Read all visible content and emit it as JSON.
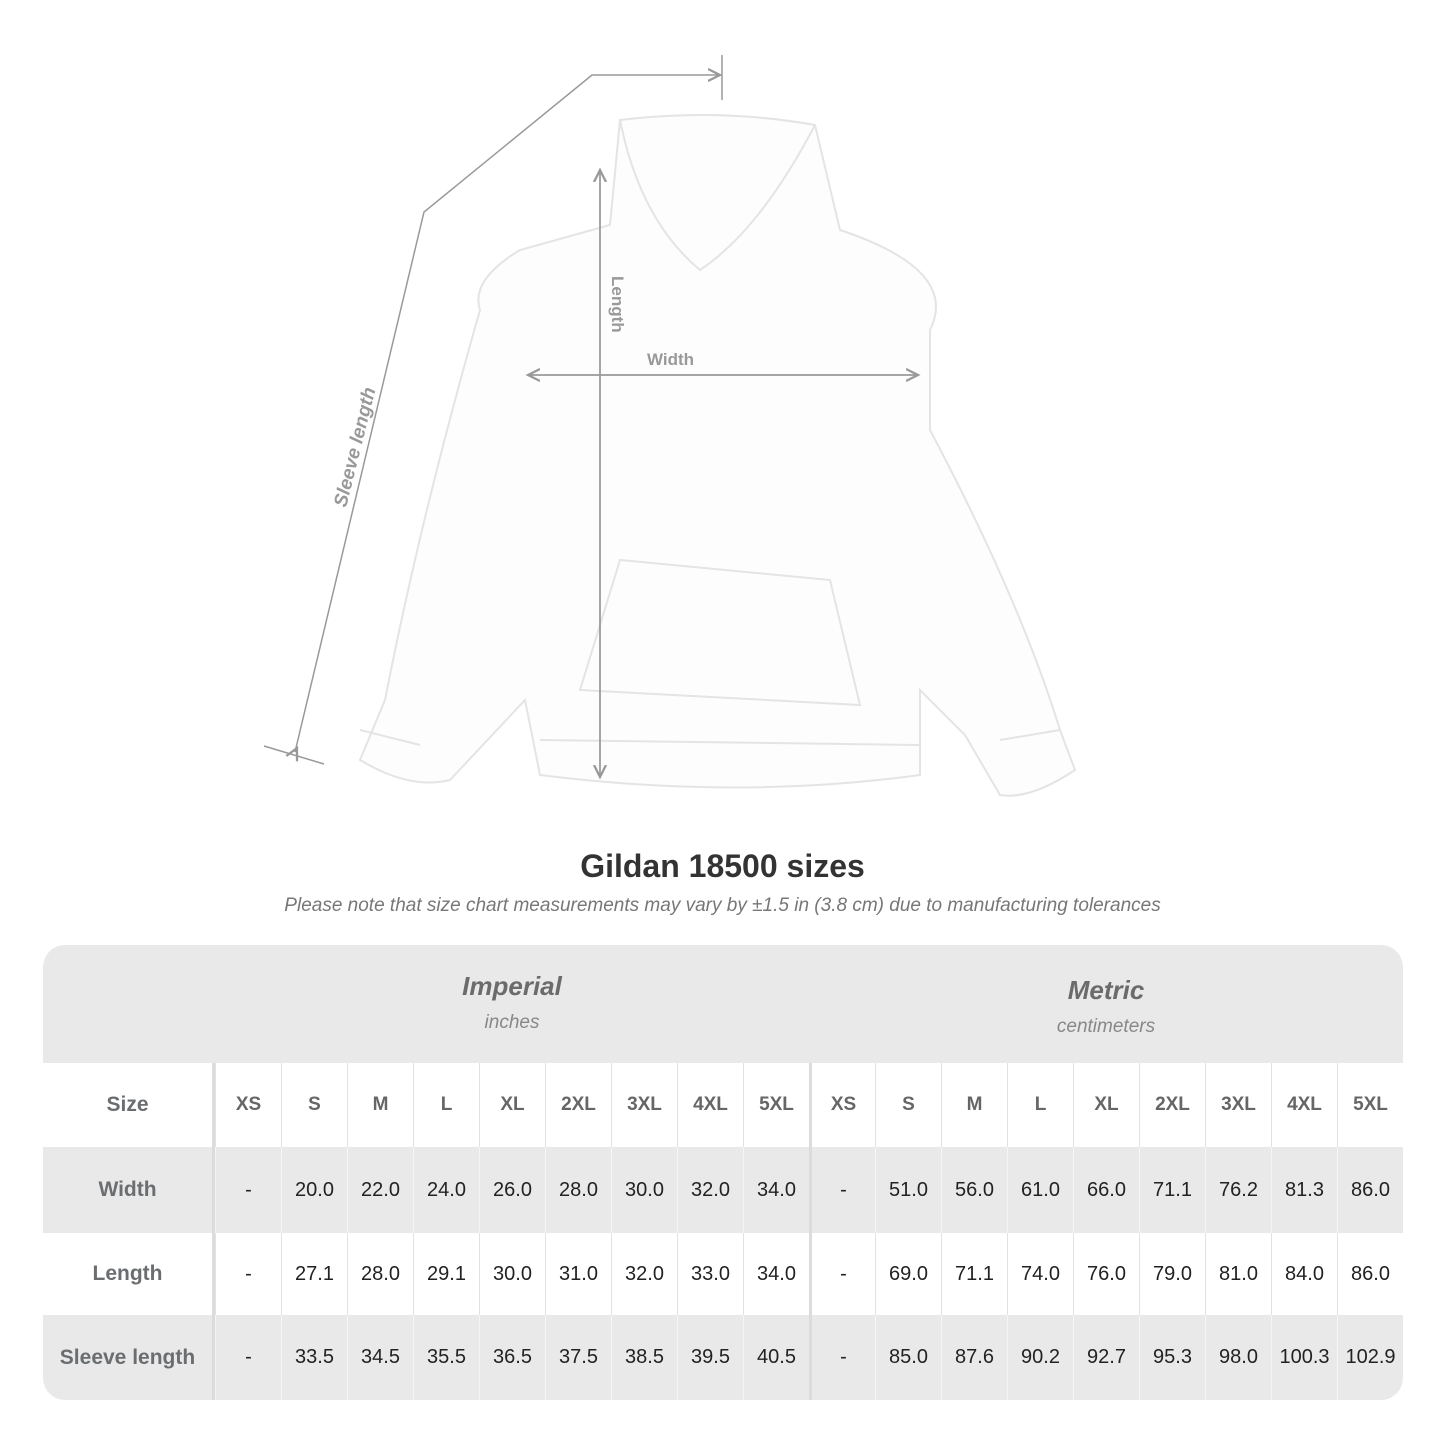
{
  "diagram": {
    "labels": {
      "sleeve": "Sleeve length",
      "length": "Length",
      "width": "Width"
    }
  },
  "title": "Gildan 18500 sizes",
  "note": "Please note that size chart measurements may vary by ±1.5 in (3.8 cm) due to manufacturing tolerances",
  "table": {
    "imperial": {
      "name": "Imperial",
      "unit": "inches"
    },
    "metric": {
      "name": "Metric",
      "unit": "centimeters"
    },
    "size_label": "Size",
    "sizes": [
      "XS",
      "S",
      "M",
      "L",
      "XL",
      "2XL",
      "3XL",
      "4XL",
      "5XL"
    ],
    "rows": [
      {
        "label": "Width",
        "imperial": [
          "-",
          "20.0",
          "22.0",
          "24.0",
          "26.0",
          "28.0",
          "30.0",
          "32.0",
          "34.0"
        ],
        "metric": [
          "-",
          "51.0",
          "56.0",
          "61.0",
          "66.0",
          "71.1",
          "76.2",
          "81.3",
          "86.0"
        ]
      },
      {
        "label": "Length",
        "imperial": [
          "-",
          "27.1",
          "28.0",
          "29.1",
          "30.0",
          "31.0",
          "32.0",
          "33.0",
          "34.0"
        ],
        "metric": [
          "-",
          "69.0",
          "71.1",
          "74.0",
          "76.0",
          "79.0",
          "81.0",
          "84.0",
          "86.0"
        ]
      },
      {
        "label": "Sleeve length",
        "imperial": [
          "-",
          "33.5",
          "34.5",
          "35.5",
          "36.5",
          "37.5",
          "38.5",
          "39.5",
          "40.5"
        ],
        "metric": [
          "-",
          "85.0",
          "87.6",
          "90.2",
          "92.7",
          "95.3",
          "98.0",
          "100.3",
          "102.9"
        ]
      }
    ]
  }
}
